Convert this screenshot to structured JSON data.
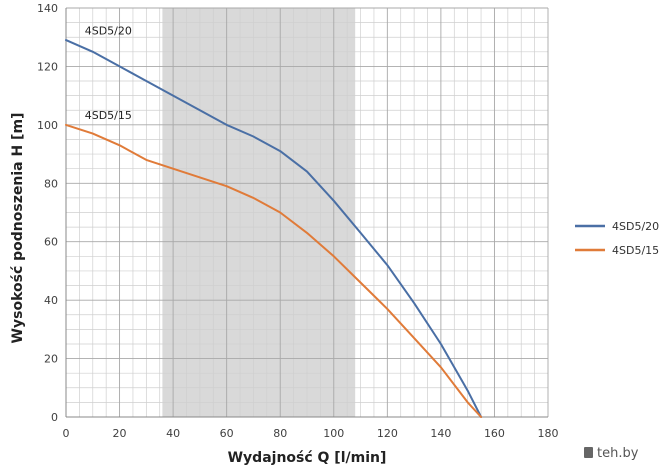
{
  "chart_data": {
    "type": "line",
    "xlabel": "Wydajność Q [l/min]",
    "ylabel": "Wysokość podnoszenia H [m]",
    "xlim": [
      0,
      180
    ],
    "ylim": [
      0,
      140
    ],
    "x_ticks": [
      0,
      20,
      40,
      60,
      80,
      100,
      120,
      140,
      160,
      180
    ],
    "y_ticks": [
      0,
      20,
      40,
      60,
      80,
      100,
      120,
      140
    ],
    "grid": true,
    "shaded_region": {
      "x_start": 36,
      "x_end": 108,
      "color": "#d9d9d9"
    },
    "legend_placement": "right",
    "series": [
      {
        "name": "4SD5/20",
        "color": "#4a6fa5",
        "x": [
          0,
          10,
          20,
          30,
          40,
          50,
          60,
          70,
          80,
          90,
          100,
          110,
          120,
          130,
          140,
          150,
          155
        ],
        "y": [
          129,
          125,
          120,
          115,
          110,
          105,
          100,
          96,
          91,
          84,
          74,
          63,
          52,
          39,
          25,
          9,
          0
        ]
      },
      {
        "name": "4SD5/15",
        "color": "#e07b39",
        "x": [
          0,
          10,
          20,
          30,
          40,
          50,
          60,
          70,
          80,
          90,
          100,
          110,
          120,
          130,
          140,
          150,
          155
        ],
        "y": [
          100,
          97,
          93,
          88,
          85,
          82,
          79,
          75,
          70,
          63,
          55,
          46,
          37,
          27,
          17,
          5,
          0
        ]
      }
    ],
    "series_labels": [
      {
        "text": "4SD5/20",
        "x": 7,
        "y": 131
      },
      {
        "text": "4SD5/15",
        "x": 7,
        "y": 102
      }
    ]
  },
  "watermark": "teh.by"
}
